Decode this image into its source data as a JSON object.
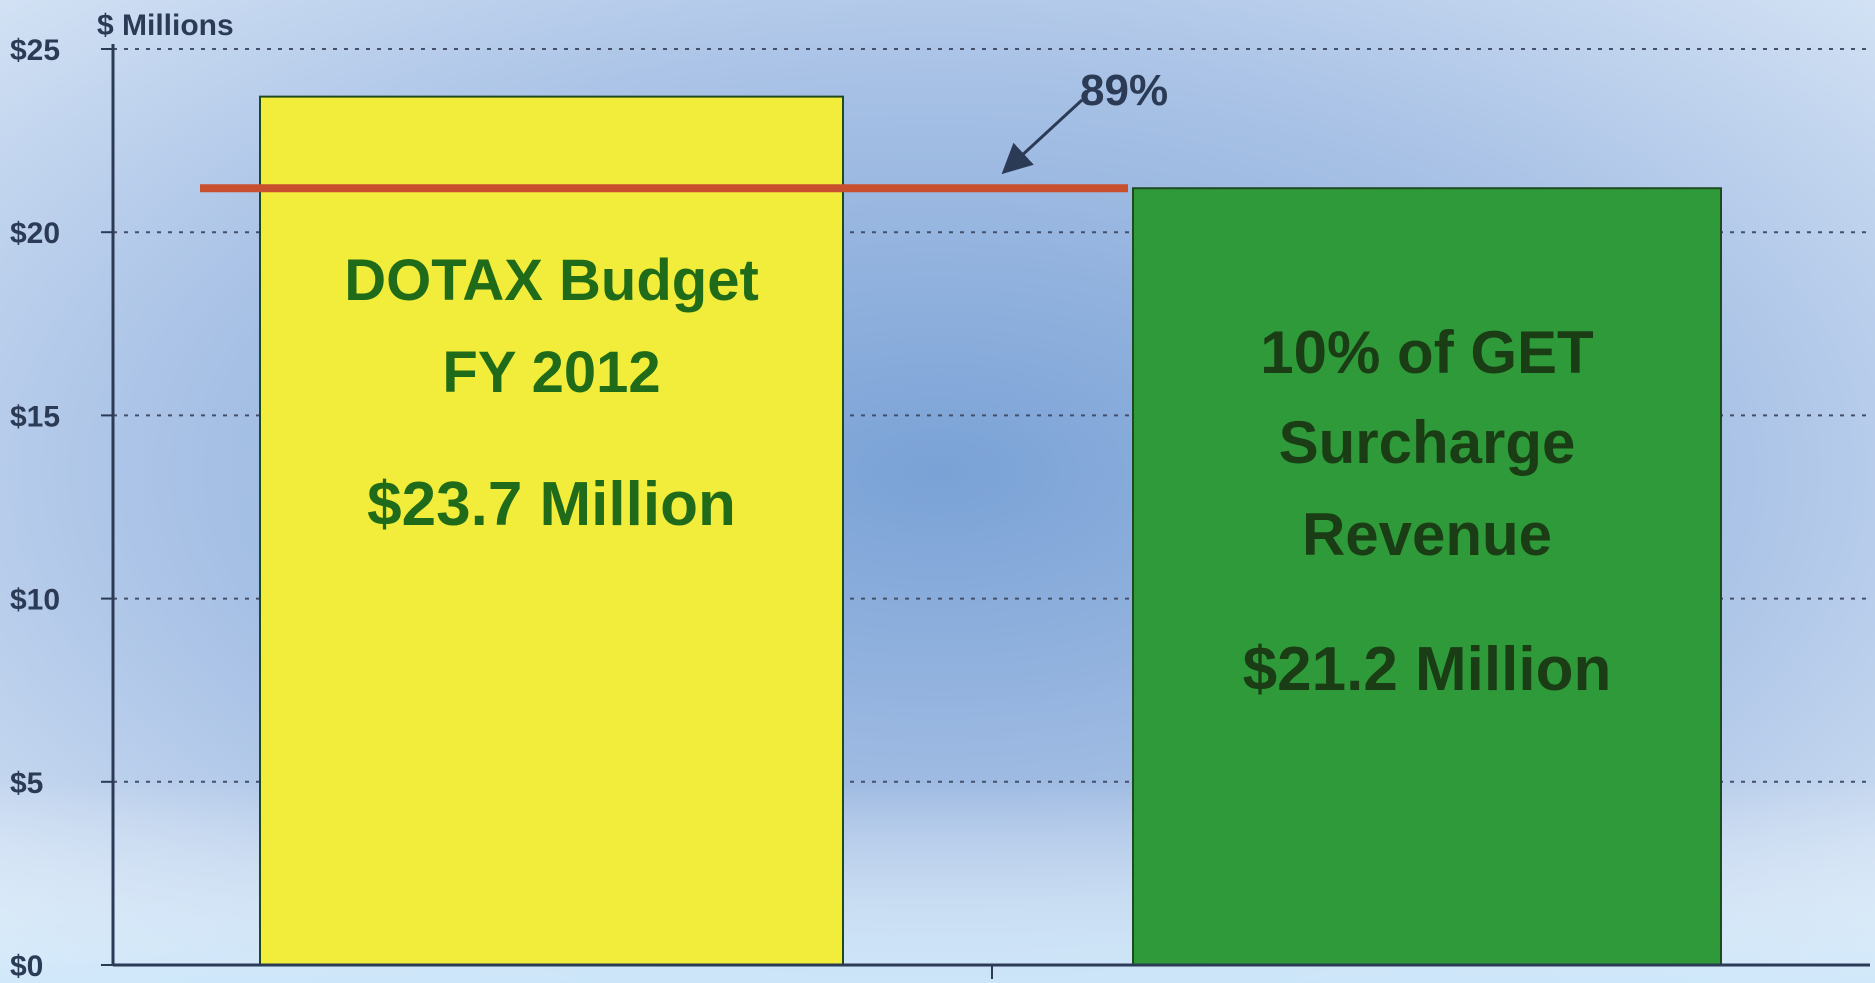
{
  "chart_data": {
    "type": "bar",
    "ylabel": "$ Millions",
    "ylim": [
      0,
      25
    ],
    "yticks": [
      {
        "value": 0,
        "label": "$0"
      },
      {
        "value": 5,
        "label": "$5"
      },
      {
        "value": 10,
        "label": "$10"
      },
      {
        "value": 15,
        "label": "$15"
      },
      {
        "value": 20,
        "label": "$20"
      },
      {
        "value": 25,
        "label": "$25"
      }
    ],
    "grid": true,
    "bars": [
      {
        "lines": [
          "DOTAX Budget",
          "FY 2012"
        ],
        "amount_label": "$23.7 Million",
        "value": 23.7,
        "color": "#f2ec3a",
        "text_color": "#1f6b1a"
      },
      {
        "lines": [
          "10% of GET",
          "Surcharge",
          "Revenue"
        ],
        "amount_label": "$21.2 Million",
        "value": 21.2,
        "color": "#2f9a3a",
        "text_color": "#1a3d15"
      }
    ],
    "reference_line": {
      "value": 21.2,
      "color": "#c8502e"
    },
    "annotation": {
      "text": "89%"
    }
  }
}
